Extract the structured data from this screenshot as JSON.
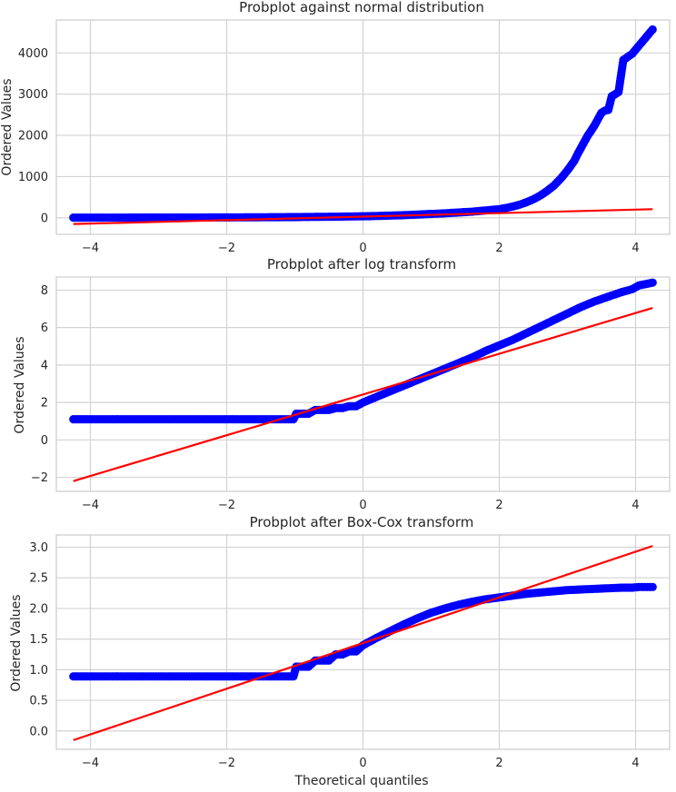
{
  "figure": {
    "xlabel": "Theoretical quantiles"
  },
  "chart_data": [
    {
      "type": "scatter",
      "title": "Probplot against normal distribution",
      "xlabel": "",
      "ylabel": "Ordered Values",
      "xlim": [
        -4.5,
        4.5
      ],
      "ylim": [
        -400,
        4800
      ],
      "xticks": [
        -4,
        -2,
        0,
        2,
        4
      ],
      "xtick_labels": [
        "−4",
        "−2",
        "0",
        "2",
        "4"
      ],
      "yticks": [
        0,
        1000,
        2000,
        3000,
        4000
      ],
      "ytick_labels": [
        "0",
        "1000",
        "2000",
        "3000",
        "4000"
      ],
      "grid": true,
      "point_color": "#0000ff",
      "line_color": "#ff0000",
      "fit_line": {
        "x": [
          -4.25,
          4.25
        ],
        "y": [
          -150,
          210
        ]
      },
      "points": {
        "x": [
          -4.25,
          -4.05,
          -3.9,
          -3.8,
          -3.6,
          -3.4,
          -3.2,
          -3.0,
          -2.8,
          -2.6,
          -2.4,
          -2.2,
          -2.0,
          -1.8,
          -1.6,
          -1.4,
          -1.2,
          -1.0,
          -0.8,
          -0.6,
          -0.4,
          -0.2,
          0.0,
          0.2,
          0.4,
          0.6,
          0.8,
          1.0,
          1.2,
          1.4,
          1.6,
          1.8,
          2.0,
          2.1,
          2.2,
          2.3,
          2.4,
          2.5,
          2.6,
          2.7,
          2.8,
          2.9,
          3.0,
          3.1,
          3.15,
          3.2,
          3.25,
          3.3,
          3.35,
          3.4,
          3.45,
          3.5,
          3.55,
          3.6,
          3.65,
          3.7,
          3.75,
          3.82,
          3.95,
          4.25
        ],
        "y": [
          5,
          5,
          5,
          6,
          6,
          7,
          7,
          8,
          8,
          9,
          9,
          10,
          11,
          12,
          13,
          15,
          17,
          19,
          22,
          25,
          28,
          33,
          38,
          45,
          55,
          65,
          80,
          95,
          110,
          130,
          150,
          180,
          210,
          240,
          275,
          320,
          380,
          450,
          540,
          650,
          780,
          950,
          1150,
          1380,
          1550,
          1700,
          1850,
          2000,
          2120,
          2250,
          2400,
          2550,
          2600,
          2620,
          2950,
          3000,
          3050,
          3830,
          3980,
          4570
        ]
      }
    },
    {
      "type": "scatter",
      "title": "Probplot after log transform",
      "xlabel": "",
      "ylabel": "Ordered Values",
      "xlim": [
        -4.5,
        4.5
      ],
      "ylim": [
        -2.75,
        8.7
      ],
      "xticks": [
        -4,
        -2,
        0,
        2,
        4
      ],
      "xtick_labels": [
        "−4",
        "−2",
        "0",
        "2",
        "4"
      ],
      "yticks": [
        -2,
        0,
        2,
        4,
        6,
        8
      ],
      "ytick_labels": [
        "−2",
        "0",
        "2",
        "4",
        "6",
        "8"
      ],
      "grid": true,
      "point_color": "#0000ff",
      "line_color": "#ff0000",
      "fit_line": {
        "x": [
          -4.25,
          4.25
        ],
        "y": [
          -2.2,
          7.05
        ]
      },
      "points": {
        "x": [
          -4.25,
          -4.05,
          -3.9,
          -3.6,
          -3.3,
          -3.0,
          -2.7,
          -2.4,
          -2.1,
          -1.8,
          -1.5,
          -1.2,
          -1.02,
          -0.98,
          -0.9,
          -0.8,
          -0.7,
          -0.6,
          -0.5,
          -0.4,
          -0.3,
          -0.2,
          -0.1,
          0.0,
          0.2,
          0.4,
          0.6,
          0.8,
          1.0,
          1.2,
          1.4,
          1.6,
          1.8,
          2.0,
          2.2,
          2.4,
          2.6,
          2.8,
          3.0,
          3.2,
          3.4,
          3.6,
          3.8,
          3.95,
          4.05,
          4.25
        ],
        "y": [
          1.1,
          1.1,
          1.1,
          1.1,
          1.1,
          1.1,
          1.1,
          1.1,
          1.1,
          1.1,
          1.1,
          1.1,
          1.1,
          1.4,
          1.4,
          1.4,
          1.6,
          1.6,
          1.6,
          1.7,
          1.7,
          1.8,
          1.8,
          2.0,
          2.3,
          2.6,
          2.9,
          3.2,
          3.5,
          3.8,
          4.1,
          4.4,
          4.75,
          5.05,
          5.35,
          5.7,
          6.05,
          6.4,
          6.75,
          7.1,
          7.4,
          7.65,
          7.9,
          8.05,
          8.25,
          8.4
        ]
      }
    },
    {
      "type": "scatter",
      "title": "Probplot after Box-Cox transform",
      "xlabel": "Theoretical quantiles",
      "ylabel": "Ordered Values",
      "xlim": [
        -4.5,
        4.5
      ],
      "ylim": [
        -0.3,
        3.2
      ],
      "xticks": [
        -4,
        -2,
        0,
        2,
        4
      ],
      "xtick_labels": [
        "−4",
        "−2",
        "0",
        "2",
        "4"
      ],
      "yticks": [
        0.0,
        0.5,
        1.0,
        1.5,
        2.0,
        2.5,
        3.0
      ],
      "ytick_labels": [
        "0.0",
        "0.5",
        "1.0",
        "1.5",
        "2.0",
        "2.5",
        "3.0"
      ],
      "grid": true,
      "point_color": "#0000ff",
      "line_color": "#ff0000",
      "fit_line": {
        "x": [
          -4.25,
          4.25
        ],
        "y": [
          -0.15,
          3.02
        ]
      },
      "points": {
        "x": [
          -4.25,
          -4.05,
          -3.9,
          -3.6,
          -3.3,
          -3.0,
          -2.7,
          -2.4,
          -2.1,
          -1.8,
          -1.5,
          -1.2,
          -1.02,
          -0.98,
          -0.9,
          -0.8,
          -0.7,
          -0.6,
          -0.5,
          -0.4,
          -0.3,
          -0.2,
          -0.1,
          0.0,
          0.2,
          0.4,
          0.6,
          0.8,
          1.0,
          1.2,
          1.4,
          1.6,
          1.8,
          2.0,
          2.2,
          2.4,
          2.6,
          2.8,
          3.0,
          3.2,
          3.4,
          3.6,
          3.8,
          3.95,
          4.05,
          4.25
        ],
        "y": [
          0.89,
          0.89,
          0.89,
          0.89,
          0.89,
          0.89,
          0.89,
          0.89,
          0.89,
          0.89,
          0.89,
          0.89,
          0.89,
          1.05,
          1.05,
          1.05,
          1.15,
          1.15,
          1.15,
          1.25,
          1.25,
          1.3,
          1.3,
          1.4,
          1.52,
          1.63,
          1.74,
          1.84,
          1.93,
          2.0,
          2.06,
          2.11,
          2.15,
          2.18,
          2.21,
          2.24,
          2.26,
          2.28,
          2.3,
          2.31,
          2.32,
          2.33,
          2.34,
          2.34,
          2.35,
          2.35
        ]
      }
    }
  ]
}
